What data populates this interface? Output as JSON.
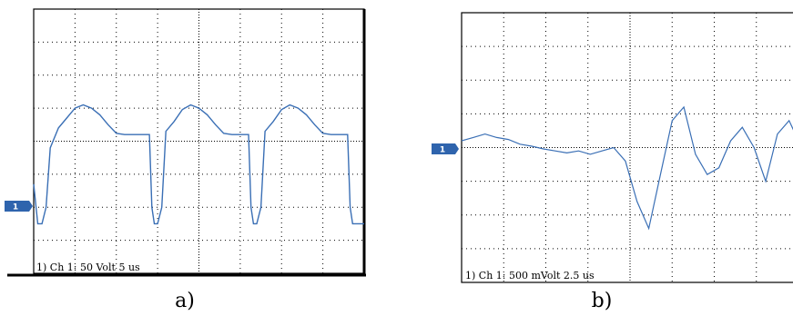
{
  "colors": {
    "trace": "#3a6fb5",
    "marker": "#2f64ad",
    "grid": "#000000",
    "frame": "#000000",
    "background": "#ffffff"
  },
  "chart_data": [
    {
      "id": "a",
      "type": "line",
      "caption": "a)",
      "channel_marker": "1",
      "readout": "1) Ch 1:   50 Volt  5 us",
      "volts_per_div": 50,
      "time_per_div_us": 5,
      "x_unit": "us",
      "y_unit": "V",
      "grid": true,
      "divisions": {
        "x": 8,
        "y": 8
      },
      "xlim": [
        0,
        40
      ],
      "ylim": [
        -200,
        200
      ],
      "series": [
        {
          "values_x": [
            0,
            0.5,
            1.0,
            1.5,
            2.0,
            3.0,
            4.0,
            5.0,
            6.0,
            7.0,
            8.0,
            9.0,
            10.0,
            11.0,
            12.0,
            13.0,
            14.0,
            14.3,
            14.6,
            15.0,
            15.5,
            16.0,
            17.0,
            18.0,
            19.0,
            20.0,
            21.0,
            22.0,
            23.0,
            24.0,
            25.0,
            26.0,
            26.3,
            26.6,
            27.0,
            27.5,
            28.0,
            29.0,
            30.0,
            31.0,
            32.0,
            33.0,
            34.0,
            35.0,
            36.0,
            37.0,
            38.0,
            38.3,
            38.6,
            39.0,
            40.0
          ],
          "values_y": [
            -65,
            -125,
            -125,
            -100,
            -10,
            20,
            35,
            50,
            55,
            50,
            40,
            25,
            12,
            10,
            10,
            10,
            10,
            -100,
            -125,
            -125,
            -100,
            15,
            30,
            48,
            55,
            50,
            40,
            25,
            12,
            10,
            10,
            10,
            -100,
            -125,
            -125,
            -100,
            15,
            30,
            48,
            55,
            50,
            40,
            25,
            12,
            10,
            10,
            10,
            -100,
            -125,
            -125,
            -125
          ]
        }
      ]
    },
    {
      "id": "b",
      "type": "line",
      "caption": "b)",
      "channel_marker": "1",
      "readout": "1) Ch 1:   500 mVolt  2.5 us",
      "volts_per_div": 0.5,
      "time_per_div_us": 2.5,
      "x_unit": "us",
      "y_unit": "V",
      "grid": true,
      "divisions": {
        "x": 8,
        "y": 8
      },
      "xlim": [
        0,
        14.4
      ],
      "ylim": [
        -2.0,
        2.0
      ],
      "series": [
        {
          "values_x": [
            0,
            0.5,
            1.0,
            1.5,
            2.0,
            2.5,
            3.0,
            3.5,
            4.0,
            4.5,
            5.0,
            5.5,
            6.0,
            6.5,
            7.0,
            7.5,
            8.0,
            8.5,
            9.0,
            9.5,
            10.0,
            10.5,
            11.0,
            11.5,
            12.0,
            12.5,
            13.0,
            13.5,
            14.0,
            14.4
          ],
          "values_y": [
            0.1,
            0.15,
            0.2,
            0.15,
            0.12,
            0.05,
            0.02,
            -0.02,
            -0.05,
            -0.08,
            -0.05,
            -0.1,
            -0.05,
            0.0,
            -0.2,
            -0.8,
            -1.2,
            -0.4,
            0.4,
            0.6,
            -0.1,
            -0.4,
            -0.3,
            0.1,
            0.3,
            0.0,
            -0.5,
            0.2,
            0.4,
            0.1
          ]
        }
      ]
    }
  ]
}
